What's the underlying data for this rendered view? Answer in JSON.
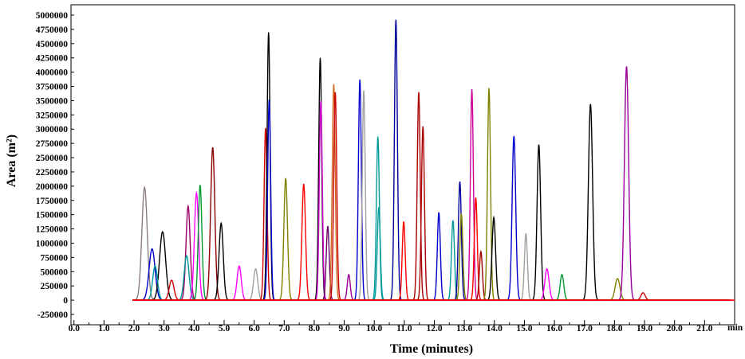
{
  "chart_data": {
    "type": "line",
    "title": "",
    "xlabel": "Time (minutes)",
    "ylabel": "Area (m²)",
    "x_unit": "min",
    "xlim": [
      -0.1,
      22.0
    ],
    "ylim": [
      -250000,
      5000000
    ],
    "x_ticks": [
      "0.0",
      "1.0",
      "2.0",
      "3.0",
      "4.0",
      "5.0",
      "6.0",
      "7.0",
      "8.0",
      "9.0",
      "10.0",
      "11.0",
      "12.0",
      "13.0",
      "14.0",
      "15.0",
      "16.0",
      "17.0",
      "18.0",
      "19.0",
      "20.0",
      "21.0"
    ],
    "x_tick_values": [
      0,
      1,
      2,
      3,
      4,
      5,
      6,
      7,
      8,
      9,
      10,
      11,
      12,
      13,
      14,
      15,
      16,
      17,
      18,
      19,
      20,
      21
    ],
    "y_ticks": [
      "5000000",
      "4750000",
      "4500000",
      "4250000",
      "4000000",
      "3750000",
      "3500000",
      "3250000",
      "3000000",
      "2750000",
      "2500000",
      "2250000",
      "2000000",
      "1750000",
      "1500000",
      "1250000",
      "1000000",
      "750000",
      "500000",
      "250000",
      "0",
      "-250000"
    ],
    "y_tick_values": [
      5000000,
      4750000,
      4500000,
      4250000,
      4000000,
      3750000,
      3500000,
      3250000,
      3000000,
      2750000,
      2500000,
      2250000,
      2000000,
      1750000,
      1500000,
      1250000,
      1000000,
      750000,
      500000,
      250000,
      0,
      -250000
    ],
    "grid": false,
    "legend": "none",
    "series": [
      {
        "color": "#8b7d7d",
        "peaks": [
          [
            2.35,
            1980000,
            0.09
          ]
        ]
      },
      {
        "color": "#0000cc",
        "peaks": [
          [
            2.6,
            900000,
            0.1
          ]
        ]
      },
      {
        "color": "#000000",
        "peaks": [
          [
            2.95,
            1200000,
            0.1
          ]
        ]
      },
      {
        "color": "#009999",
        "peaks": [
          [
            2.7,
            600000,
            0.08
          ]
        ]
      },
      {
        "color": "#cc0000",
        "peaks": [
          [
            3.25,
            350000,
            0.08
          ]
        ]
      },
      {
        "color": "#990066",
        "peaks": [
          [
            3.8,
            1650000,
            0.07
          ]
        ]
      },
      {
        "color": "#009999",
        "peaks": [
          [
            3.75,
            780000,
            0.08
          ]
        ]
      },
      {
        "color": "#ff00ff",
        "peaks": [
          [
            4.08,
            1880000,
            0.07
          ]
        ]
      },
      {
        "color": "#009933",
        "peaks": [
          [
            4.2,
            2020000,
            0.06
          ]
        ]
      },
      {
        "color": "#8b0000",
        "peaks": [
          [
            4.62,
            2680000,
            0.07
          ]
        ]
      },
      {
        "color": "#000000",
        "peaks": [
          [
            4.9,
            1350000,
            0.07
          ]
        ]
      },
      {
        "color": "#ff00ff",
        "peaks": [
          [
            5.5,
            600000,
            0.07
          ]
        ]
      },
      {
        "color": "#a0a0a0",
        "peaks": [
          [
            6.05,
            550000,
            0.07
          ]
        ]
      },
      {
        "color": "#cc0000",
        "peaks": [
          [
            6.38,
            3020000,
            0.05
          ]
        ]
      },
      {
        "color": "#000000",
        "peaks": [
          [
            6.48,
            4700000,
            0.05
          ]
        ]
      },
      {
        "color": "#0000cc",
        "peaks": [
          [
            6.5,
            3520000,
            0.05
          ]
        ]
      },
      {
        "color": "#808000",
        "peaks": [
          [
            7.05,
            2140000,
            0.06
          ]
        ]
      },
      {
        "color": "#ff0000",
        "peaks": [
          [
            7.65,
            2040000,
            0.06
          ]
        ]
      },
      {
        "color": "#000000",
        "peaks": [
          [
            8.2,
            4250000,
            0.05
          ]
        ]
      },
      {
        "color": "#cc00cc",
        "peaks": [
          [
            8.22,
            3500000,
            0.05
          ]
        ]
      },
      {
        "color": "#660066",
        "peaks": [
          [
            8.45,
            1300000,
            0.05
          ]
        ]
      },
      {
        "color": "#d2691e",
        "peaks": [
          [
            8.65,
            3790000,
            0.05
          ]
        ]
      },
      {
        "color": "#cc0000",
        "peaks": [
          [
            8.7,
            3650000,
            0.05
          ]
        ]
      },
      {
        "color": "#990099",
        "peaks": [
          [
            9.15,
            450000,
            0.05
          ]
        ]
      },
      {
        "color": "#0000cc",
        "peaks": [
          [
            9.52,
            3870000,
            0.05
          ]
        ]
      },
      {
        "color": "#a0a0a0",
        "peaks": [
          [
            9.65,
            3680000,
            0.05
          ]
        ]
      },
      {
        "color": "#009999",
        "peaks": [
          [
            10.12,
            2870000,
            0.05
          ]
        ]
      },
      {
        "color": "#009999",
        "peaks": [
          [
            10.15,
            1630000,
            0.05
          ]
        ]
      },
      {
        "color": "#000099",
        "peaks": [
          [
            10.72,
            4920000,
            0.05
          ]
        ]
      },
      {
        "color": "#ff0000",
        "peaks": [
          [
            10.98,
            1380000,
            0.05
          ]
        ]
      },
      {
        "color": "#aa0000",
        "peaks": [
          [
            11.48,
            3650000,
            0.05
          ]
        ]
      },
      {
        "color": "#aa0000",
        "peaks": [
          [
            11.62,
            3050000,
            0.05
          ]
        ]
      },
      {
        "color": "#0000cc",
        "peaks": [
          [
            12.15,
            1540000,
            0.05
          ]
        ]
      },
      {
        "color": "#009999",
        "peaks": [
          [
            12.62,
            1400000,
            0.05
          ]
        ]
      },
      {
        "color": "#000099",
        "peaks": [
          [
            12.85,
            2080000,
            0.05
          ]
        ]
      },
      {
        "color": "#808000",
        "peaks": [
          [
            12.9,
            1520000,
            0.05
          ]
        ]
      },
      {
        "color": "#cc0099",
        "peaks": [
          [
            13.25,
            3700000,
            0.05
          ]
        ]
      },
      {
        "color": "#ff0000",
        "peaks": [
          [
            13.38,
            1800000,
            0.05
          ]
        ]
      },
      {
        "color": "#990000",
        "peaks": [
          [
            13.55,
            850000,
            0.05
          ]
        ]
      },
      {
        "color": "#808000",
        "peaks": [
          [
            13.82,
            3720000,
            0.05
          ]
        ]
      },
      {
        "color": "#000000",
        "peaks": [
          [
            13.98,
            1450000,
            0.06
          ]
        ]
      },
      {
        "color": "#0000cc",
        "peaks": [
          [
            14.65,
            2880000,
            0.06
          ]
        ]
      },
      {
        "color": "#a0a0a0",
        "peaks": [
          [
            15.05,
            1170000,
            0.05
          ]
        ]
      },
      {
        "color": "#000000",
        "peaks": [
          [
            15.48,
            2730000,
            0.06
          ]
        ]
      },
      {
        "color": "#ff00ff",
        "peaks": [
          [
            15.75,
            550000,
            0.07
          ]
        ]
      },
      {
        "color": "#009933",
        "peaks": [
          [
            16.25,
            450000,
            0.06
          ]
        ]
      },
      {
        "color": "#000000",
        "peaks": [
          [
            17.2,
            3440000,
            0.07
          ]
        ]
      },
      {
        "color": "#808000",
        "peaks": [
          [
            18.1,
            380000,
            0.08
          ]
        ]
      },
      {
        "color": "#990099",
        "peaks": [
          [
            18.4,
            4100000,
            0.07
          ]
        ]
      },
      {
        "color": "#cc0000",
        "peaks": [
          [
            18.95,
            130000,
            0.07
          ]
        ]
      }
    ]
  }
}
